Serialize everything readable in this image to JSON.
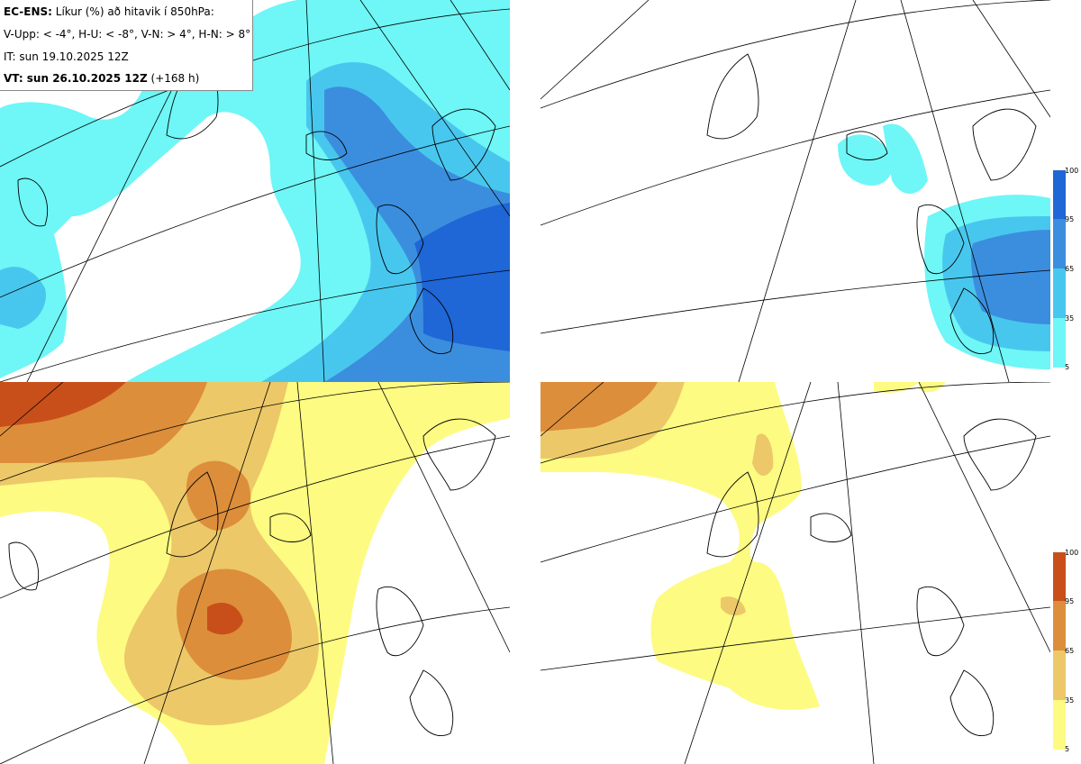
{
  "header": {
    "model": "EC-ENS:",
    "title": "Líkur (%) að hitavik í 850hPa:",
    "thresholds": "V-Upp: < -4°, H-U: < -8°, V-N: > 4°, H-N: > 8°",
    "init_time": "IT: sun 19.10.2025 12Z",
    "valid_label": "VT: sun 26.10.2025 12Z",
    "lead": "(+168 h)"
  },
  "colorbar_labels": [
    "100",
    "95",
    "65",
    "35",
    "5"
  ],
  "colors": {
    "blue_levels": [
      "#6ff6f6",
      "#48c7ee",
      "#3b8ede",
      "#1f66d6"
    ],
    "warm_levels": [
      "#fdfb82",
      "#ecc868",
      "#dd8e3a",
      "#c84f1a"
    ],
    "coast": "#000000",
    "graticule": "#000000"
  },
  "panels": [
    {
      "id": "upper-left",
      "variable": "cold anomaly < -4°",
      "palette": "blue"
    },
    {
      "id": "upper-right",
      "variable": "cold anomaly < -8°",
      "palette": "blue"
    },
    {
      "id": "lower-left",
      "variable": "warm anomaly > 4°",
      "palette": "warm"
    },
    {
      "id": "lower-right",
      "variable": "warm anomaly > 8°",
      "palette": "warm"
    }
  ]
}
